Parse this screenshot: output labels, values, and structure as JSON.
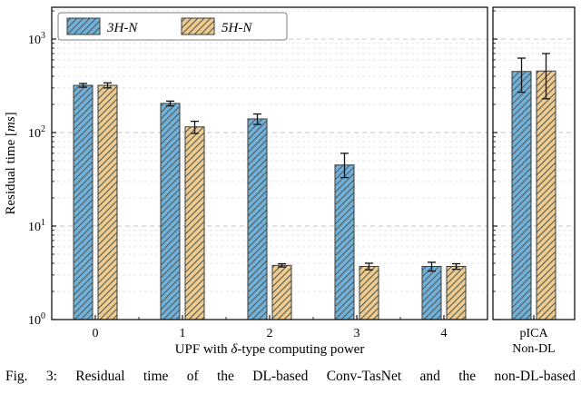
{
  "figure": {
    "caption": "Fig. 3: Residual time of the DL-based Conv-TasNet and the non-DL-based"
  },
  "chart_data": {
    "type": "bar",
    "title": "",
    "xlabel": "UPF with δ-type computing power",
    "ylabel": "Residual time [ms]",
    "yscale": "log",
    "ylim": [
      1,
      2200
    ],
    "y_ticks": [
      1,
      10,
      100,
      1000
    ],
    "y_tick_exponents": [
      0,
      1,
      2,
      3
    ],
    "categories": [
      "0",
      "1",
      "2",
      "3",
      "4"
    ],
    "right_categories": [
      "pICA",
      "Non-DL"
    ],
    "series": [
      {
        "name": "3H-N",
        "color": "#6fb1d9",
        "hatch": "/",
        "values": [
          320,
          205,
          140,
          45,
          3.7
        ],
        "errors_minus": [
          15,
          12,
          18,
          12,
          0.4
        ],
        "errors_plus": [
          15,
          12,
          18,
          15,
          0.4
        ],
        "pica_value": 450,
        "pica_error_minus": 180,
        "pica_error_plus": 175
      },
      {
        "name": "5H-N",
        "color": "#edcb8d",
        "hatch": "/",
        "values": [
          320,
          115,
          3.8,
          3.7,
          3.7
        ],
        "errors_minus": [
          20,
          17,
          0.15,
          0.3,
          0.25
        ],
        "errors_plus": [
          20,
          17,
          0.15,
          0.3,
          0.25
        ],
        "pica_value": 455,
        "pica_error_minus": 225,
        "pica_error_plus": 245
      }
    ],
    "legend": {
      "labels": [
        "3H-N",
        "5H-N"
      ],
      "position": "upper left"
    },
    "grid": {
      "which": "both",
      "style": "dashed",
      "color": "#c3c3c3"
    },
    "colors": {
      "bar_edge": "#3d3d3d",
      "hatch": "#585858",
      "error": "#111111",
      "spine": "#000000",
      "grid_major": "#c3c3c3",
      "grid_minor": "#dcdcdc"
    }
  }
}
